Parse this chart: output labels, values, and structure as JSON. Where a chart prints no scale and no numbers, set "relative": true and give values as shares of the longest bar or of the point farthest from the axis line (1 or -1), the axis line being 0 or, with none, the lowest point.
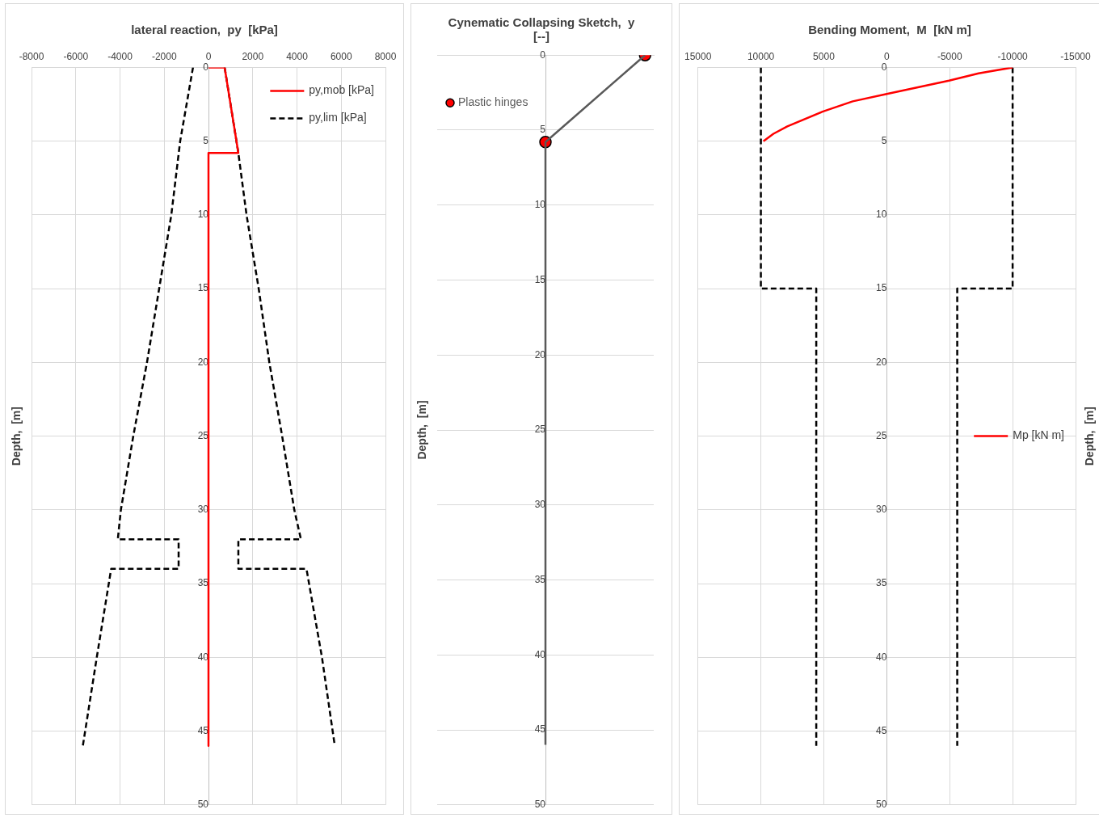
{
  "chart_data": [
    {
      "type": "line",
      "title": "lateral reaction,  py  [kPa]",
      "ylabel": "Depth,  [m]",
      "xlim": [
        -8000,
        8000
      ],
      "xticks": [
        -8000,
        -6000,
        -4000,
        -2000,
        0,
        2000,
        4000,
        6000,
        8000
      ],
      "ylim": [
        50,
        0
      ],
      "yticks": [
        0,
        5,
        10,
        15,
        20,
        25,
        30,
        35,
        40,
        45,
        50
      ],
      "grid": true,
      "legend": "top right",
      "series": [
        {
          "name": "py,mob [kPa]",
          "color": "#ff0000",
          "line_style": "solid",
          "x": [
            0,
            730,
            1350,
            0,
            0
          ],
          "values": [
            0,
            0,
            5.8,
            5.8,
            46
          ]
        },
        {
          "name": "py,lim [kPa]",
          "color": "#000000",
          "line_style": "dashed",
          "x": [
            730,
            1350,
            1720,
            2270,
            2750,
            3330,
            3880,
            4180,
            1350,
            1350,
            4430,
            5130,
            5710,
            0,
            -700,
            -1280,
            -1680,
            -2230,
            -2780,
            -3400,
            -3960,
            -4100,
            -1350,
            -1350,
            -4400,
            -5050,
            -5680
          ],
          "values": [
            0,
            5.8,
            10,
            15,
            20,
            25,
            30,
            32,
            32,
            34,
            34,
            40,
            46,
            null,
            0,
            5,
            10,
            15,
            20,
            25,
            30,
            32,
            32,
            34,
            34,
            40,
            46
          ]
        }
      ]
    },
    {
      "type": "line",
      "title": "Cynematic Collapsing Sketch,  y [--]",
      "ylabel": "Depth,  [m]",
      "orientation": "horizontal",
      "relative": true,
      "ylim": [
        50,
        0
      ],
      "yticks": [
        0,
        5,
        10,
        15,
        20,
        25,
        30,
        35,
        40,
        45,
        50
      ],
      "grid": "y",
      "tick_labels": "y",
      "legend": "top left",
      "series": [
        {
          "color": "#595959",
          "line_style": "solid",
          "x": [
            46,
            5.8,
            0
          ],
          "values": [
            0,
            0,
            1
          ]
        },
        {
          "name": "Plastic hinges",
          "type": "scatter",
          "marker": "circle",
          "color": "#ff0000",
          "x": [
            5.8,
            0
          ],
          "values": [
            0,
            1
          ]
        }
      ]
    },
    {
      "type": "line",
      "title": "Bending Moment,  M  [kN m]",
      "ylabel": "Depth,  [m]",
      "xlim": [
        15000,
        -15000
      ],
      "xticks": [
        15000,
        10000,
        5000,
        0,
        -5000,
        -10000,
        -15000
      ],
      "ylim": [
        50,
        0
      ],
      "yticks": [
        0,
        5,
        10,
        15,
        20,
        25,
        30,
        35,
        40,
        45,
        50
      ],
      "grid": true,
      "legend": "right",
      "series": [
        {
          "name": "Mp [kN m]",
          "color": "#ff0000",
          "line_style": "solid",
          "x": [
            -10000,
            -7300,
            -4950,
            0,
            2700,
            5100,
            7900,
            9000,
            9800
          ],
          "values": [
            0,
            0.4,
            0.9,
            1.8,
            2.3,
            3,
            4,
            4.5,
            5
          ]
        },
        {
          "color": "#000000",
          "line_style": "dashed",
          "x": [
            10000,
            10000,
            5600,
            5600,
            0,
            -10000,
            -10000,
            -5600,
            -5600
          ],
          "values": [
            0,
            15,
            15,
            46,
            null,
            0,
            15,
            15,
            46
          ]
        }
      ]
    }
  ]
}
